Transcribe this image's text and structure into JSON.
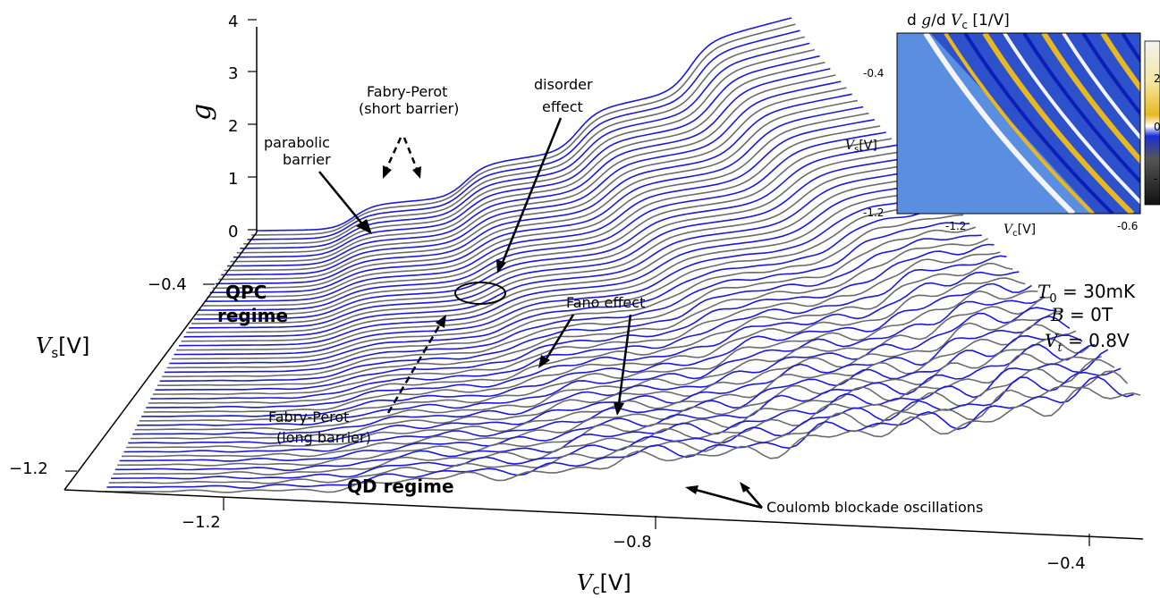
{
  "chart_data": {
    "type": "line",
    "subtype": "3d-waterfall",
    "title": "",
    "axes": {
      "x": {
        "label": "V_c[V]",
        "ticks": [
          -1.2,
          -0.8,
          -0.4
        ]
      },
      "y": {
        "label": "V_s[V]",
        "ticks": [
          -0.4,
          -1.2
        ]
      },
      "z": {
        "label": "g",
        "ticks": [
          0,
          1,
          2,
          3,
          4
        ]
      }
    },
    "series_colors": [
      "#1a1adb",
      "#6b6b6b"
    ],
    "trace_count": 60,
    "parameters": [
      "T_0 = 30mK",
      "B = 0T",
      "V_t = 0.8V"
    ],
    "annotations": [
      {
        "id": "parabolic",
        "lines": [
          "parabolic",
          "barrier"
        ]
      },
      {
        "id": "fp-short",
        "lines": [
          "Fabry-Perot",
          "(short barrier)"
        ]
      },
      {
        "id": "disorder",
        "lines": [
          "disorder",
          "effect"
        ]
      },
      {
        "id": "fano",
        "lines": [
          "Fano effect"
        ]
      },
      {
        "id": "fp-long",
        "lines": [
          "Fabry-Perot",
          "(long barrier)"
        ]
      },
      {
        "id": "coulomb",
        "lines": [
          "Coulomb blockade oscillations"
        ]
      }
    ],
    "regimes": [
      "QPC",
      "regime",
      "QD regime"
    ],
    "inset": {
      "type": "heatmap",
      "title": "d g/d V_c [1/V]",
      "xlabel": "V_c[V]",
      "ylabel": "V_s[V]",
      "xticks": [
        -1.2,
        -0.6
      ],
      "yticks": [
        -0.4,
        -1.2
      ],
      "colorbar_ticks": [
        "2",
        "0",
        "-"
      ],
      "colors": {
        "background": "#5a8ee0",
        "low": "#0a1fb8",
        "high": "#e8b820",
        "peak": "#f4f4f4"
      }
    }
  }
}
